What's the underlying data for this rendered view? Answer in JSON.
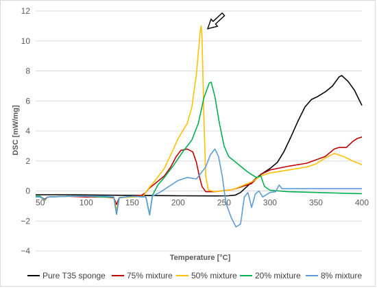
{
  "chart_data": {
    "type": "line",
    "title": "",
    "xlabel": "Temperature [°C]",
    "ylabel": "DSC [mW/mg]",
    "xlim": [
      45,
      400
    ],
    "ylim": [
      -4,
      12
    ],
    "x_ticks": [
      50,
      100,
      150,
      200,
      250,
      300,
      350,
      400
    ],
    "y_ticks": [
      -4,
      -2,
      0,
      2,
      4,
      6,
      8,
      10,
      12
    ],
    "grid": "horizontal",
    "legend_position": "bottom",
    "annotations": [
      {
        "type": "arrow",
        "points_to": {
          "x": 227,
          "y": 11.0
        },
        "label": ""
      }
    ],
    "series": [
      {
        "name": "Pure T35 sponge",
        "color": "#000000",
        "points": [
          [
            45,
            -0.25
          ],
          [
            80,
            -0.25
          ],
          [
            120,
            -0.28
          ],
          [
            160,
            -0.3
          ],
          [
            200,
            -0.32
          ],
          [
            240,
            -0.33
          ],
          [
            255,
            -0.32
          ],
          [
            262,
            -0.28
          ],
          [
            268,
            -0.1
          ],
          [
            275,
            0.3
          ],
          [
            282,
            0.7
          ],
          [
            290,
            1.1
          ],
          [
            300,
            1.5
          ],
          [
            308,
            1.9
          ],
          [
            315,
            2.6
          ],
          [
            322,
            3.5
          ],
          [
            330,
            4.6
          ],
          [
            338,
            5.6
          ],
          [
            345,
            6.1
          ],
          [
            352,
            6.3
          ],
          [
            360,
            6.6
          ],
          [
            368,
            7.0
          ],
          [
            375,
            7.6
          ],
          [
            378,
            7.7
          ],
          [
            385,
            7.3
          ],
          [
            392,
            6.7
          ],
          [
            396,
            6.2
          ],
          [
            400,
            5.7
          ]
        ]
      },
      {
        "name": "75% mixture",
        "color": "#c00000",
        "points": [
          [
            45,
            -0.35
          ],
          [
            50,
            -0.4
          ],
          [
            55,
            -0.55
          ],
          [
            58,
            -0.4
          ],
          [
            80,
            -0.35
          ],
          [
            100,
            -0.4
          ],
          [
            120,
            -0.4
          ],
          [
            130,
            -0.45
          ],
          [
            133,
            -0.9
          ],
          [
            136,
            -0.45
          ],
          [
            150,
            -0.35
          ],
          [
            160,
            -0.3
          ],
          [
            165,
            -0.1
          ],
          [
            168,
            0.15
          ],
          [
            175,
            0.5
          ],
          [
            185,
            1.0
          ],
          [
            192,
            1.6
          ],
          [
            198,
            2.3
          ],
          [
            203,
            2.7
          ],
          [
            210,
            2.8
          ],
          [
            216,
            2.6
          ],
          [
            220,
            1.9
          ],
          [
            223,
            1.0
          ],
          [
            226,
            0.3
          ],
          [
            230,
            -0.05
          ],
          [
            240,
            -0.05
          ],
          [
            260,
            0.1
          ],
          [
            280,
            0.5
          ],
          [
            290,
            1.1
          ],
          [
            300,
            1.4
          ],
          [
            320,
            1.65
          ],
          [
            340,
            1.85
          ],
          [
            360,
            2.3
          ],
          [
            370,
            2.8
          ],
          [
            375,
            2.9
          ],
          [
            383,
            2.9
          ],
          [
            390,
            3.3
          ],
          [
            395,
            3.5
          ],
          [
            400,
            3.6
          ]
        ]
      },
      {
        "name": "50% mixture",
        "color": "#ffc000",
        "points": [
          [
            45,
            -0.35
          ],
          [
            50,
            -0.35
          ],
          [
            55,
            -0.65
          ],
          [
            58,
            -0.4
          ],
          [
            80,
            -0.35
          ],
          [
            100,
            -0.35
          ],
          [
            120,
            -0.4
          ],
          [
            130,
            -0.4
          ],
          [
            133,
            -1.3
          ],
          [
            136,
            -0.45
          ],
          [
            150,
            -0.4
          ],
          [
            162,
            -0.35
          ],
          [
            167,
            0.1
          ],
          [
            175,
            0.7
          ],
          [
            185,
            1.5
          ],
          [
            195,
            2.8
          ],
          [
            200,
            3.5
          ],
          [
            210,
            4.5
          ],
          [
            215,
            5.6
          ],
          [
            220,
            7.8
          ],
          [
            224,
            10.6
          ],
          [
            225,
            11.0
          ],
          [
            226,
            10.3
          ],
          [
            228,
            5.0
          ],
          [
            230,
            1.0
          ],
          [
            233,
            0.05
          ],
          [
            240,
            -0.05
          ],
          [
            260,
            0.1
          ],
          [
            280,
            0.6
          ],
          [
            290,
            1.0
          ],
          [
            300,
            1.2
          ],
          [
            320,
            1.4
          ],
          [
            340,
            1.6
          ],
          [
            350,
            1.8
          ],
          [
            360,
            2.2
          ],
          [
            370,
            2.5
          ],
          [
            380,
            2.3
          ],
          [
            390,
            2.0
          ],
          [
            400,
            1.75
          ]
        ]
      },
      {
        "name": "20% mixture",
        "color": "#00b050",
        "points": [
          [
            45,
            -0.35
          ],
          [
            50,
            -0.35
          ],
          [
            55,
            -0.6
          ],
          [
            58,
            -0.4
          ],
          [
            80,
            -0.35
          ],
          [
            100,
            -0.35
          ],
          [
            120,
            -0.4
          ],
          [
            130,
            -0.4
          ],
          [
            133,
            -1.55
          ],
          [
            136,
            -0.45
          ],
          [
            150,
            -0.35
          ],
          [
            165,
            -0.4
          ],
          [
            169,
            -1.6
          ],
          [
            172,
            -0.3
          ],
          [
            178,
            0.4
          ],
          [
            185,
            0.9
          ],
          [
            195,
            1.7
          ],
          [
            205,
            2.6
          ],
          [
            215,
            3.4
          ],
          [
            222,
            4.5
          ],
          [
            228,
            6.2
          ],
          [
            234,
            7.2
          ],
          [
            236,
            7.25
          ],
          [
            240,
            6.3
          ],
          [
            245,
            4.5
          ],
          [
            250,
            3.0
          ],
          [
            255,
            2.3
          ],
          [
            265,
            1.8
          ],
          [
            275,
            1.3
          ],
          [
            285,
            0.9
          ],
          [
            290,
            1.0
          ],
          [
            294,
            0.3
          ],
          [
            300,
            0.05
          ],
          [
            320,
            -0.05
          ],
          [
            350,
            -0.1
          ],
          [
            380,
            -0.15
          ],
          [
            400,
            -0.18
          ]
        ]
      },
      {
        "name": "8% mixture",
        "color": "#5b9bd5",
        "points": [
          [
            45,
            -0.4
          ],
          [
            50,
            -0.4
          ],
          [
            55,
            -0.6
          ],
          [
            58,
            -0.4
          ],
          [
            80,
            -0.35
          ],
          [
            100,
            -0.35
          ],
          [
            120,
            -0.35
          ],
          [
            130,
            -0.4
          ],
          [
            133,
            -1.55
          ],
          [
            136,
            -0.45
          ],
          [
            150,
            -0.35
          ],
          [
            165,
            -0.4
          ],
          [
            169,
            -1.6
          ],
          [
            172,
            -0.35
          ],
          [
            180,
            -0.1
          ],
          [
            190,
            0.3
          ],
          [
            200,
            0.7
          ],
          [
            210,
            0.9
          ],
          [
            220,
            0.8
          ],
          [
            230,
            1.6
          ],
          [
            235,
            2.4
          ],
          [
            240,
            2.8
          ],
          [
            244,
            2.3
          ],
          [
            248,
            1.0
          ],
          [
            252,
            -0.8
          ],
          [
            258,
            -1.8
          ],
          [
            263,
            -2.4
          ],
          [
            268,
            -2.2
          ],
          [
            272,
            -0.4
          ],
          [
            276,
            -0.1
          ],
          [
            280,
            -1.1
          ],
          [
            284,
            -0.2
          ],
          [
            288,
            0.0
          ],
          [
            292,
            -0.4
          ],
          [
            300,
            -0.1
          ],
          [
            306,
            -0.05
          ],
          [
            310,
            0.4
          ],
          [
            313,
            0.15
          ],
          [
            330,
            0.15
          ],
          [
            360,
            0.15
          ],
          [
            400,
            0.15
          ]
        ]
      }
    ]
  }
}
